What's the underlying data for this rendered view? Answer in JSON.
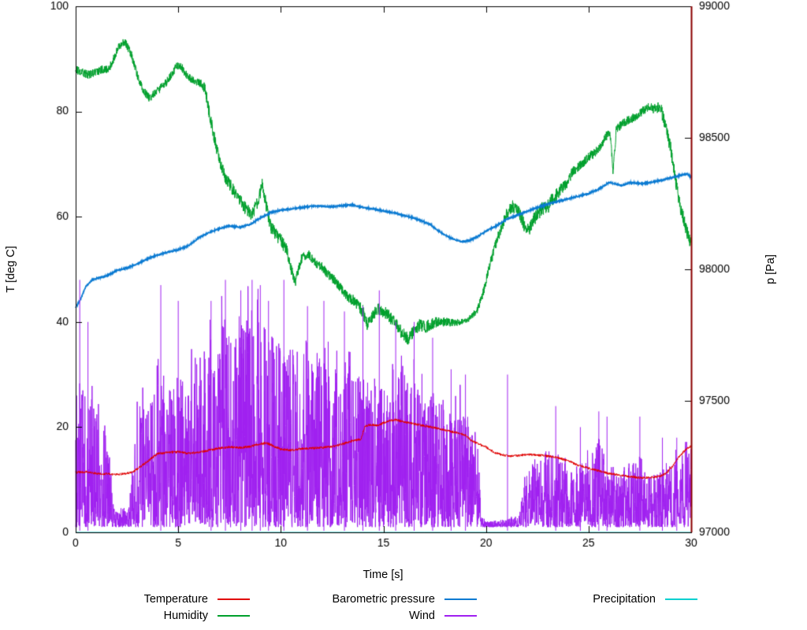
{
  "figure": {
    "background": "#ffffff"
  },
  "chart_data": {
    "type": "line",
    "title": "",
    "xlabel": "Time [s]",
    "ylabel_left": "T [deg C]",
    "ylabel_right": "p [Pa]",
    "xlim": [
      0,
      30
    ],
    "ylim_left": [
      0,
      100
    ],
    "ylim_right": [
      97000,
      99000
    ],
    "xticks": [
      0,
      5,
      10,
      15,
      20,
      25,
      30
    ],
    "yticks_left": [
      0,
      20,
      40,
      60,
      80,
      100
    ],
    "yticks_right": [
      97000,
      97500,
      98000,
      98500,
      99000
    ],
    "grid": false,
    "legend_position": "bottom",
    "border_color": "#000000",
    "right_border_color": "#8b0000",
    "draw_order": [
      4,
      1,
      2,
      3,
      0
    ],
    "series": [
      {
        "name": "Temperature",
        "color": "#e10000",
        "axis": "left",
        "style": "noisy-line",
        "width": 1,
        "noise": 0.22,
        "dt": 0.012,
        "keypoints": {
          "x": [
            0,
            0.5,
            1,
            1.5,
            2,
            2.5,
            2.8,
            3.2,
            3.6,
            4,
            4.5,
            5,
            5.5,
            6,
            6.5,
            7,
            7.5,
            8,
            8.5,
            9,
            9.3,
            9.7,
            10,
            10.5,
            11,
            11.5,
            12,
            12.5,
            13,
            13.5,
            13.9,
            14.1,
            14.4,
            14.7,
            15,
            15.3,
            15.6,
            16,
            16.4,
            16.8,
            17.2,
            17.6,
            18,
            18.5,
            19,
            19.3,
            19.7,
            20,
            20.4,
            20.8,
            21.2,
            21.6,
            22,
            22.5,
            23,
            23.5,
            24,
            24.4,
            24.8,
            25.2,
            25.6,
            26,
            26.5,
            27,
            27.5,
            28,
            28.5,
            28.8,
            29.1,
            29.4,
            29.7,
            30
          ],
          "y": [
            11.4,
            11.5,
            11.2,
            11.1,
            11.0,
            11.2,
            11.5,
            12.6,
            13.8,
            15.0,
            15.2,
            15.3,
            15.0,
            15.2,
            15.6,
            16.0,
            16.2,
            16.1,
            16.3,
            16.8,
            17.0,
            16.3,
            15.8,
            15.6,
            15.9,
            16.0,
            16.1,
            16.3,
            16.8,
            17.4,
            17.7,
            20.2,
            20.5,
            20.3,
            20.8,
            21.2,
            21.4,
            21.0,
            20.7,
            20.4,
            20.1,
            19.8,
            19.4,
            19.0,
            18.5,
            17.4,
            16.7,
            16.2,
            15.2,
            14.7,
            14.5,
            14.6,
            14.8,
            14.7,
            14.5,
            14.2,
            13.6,
            12.9,
            12.4,
            12.0,
            11.6,
            11.2,
            10.9,
            10.6,
            10.4,
            10.4,
            10.7,
            11.3,
            12.6,
            14.3,
            15.6,
            16.4
          ]
        }
      },
      {
        "name": "Humidity",
        "color": "#00a02c",
        "axis": "left",
        "style": "noisy-line",
        "width": 1,
        "noise": 0.9,
        "dt": 0.01,
        "noise_x": [
          0,
          6,
          6.5,
          10,
          11,
          13,
          14,
          17,
          19,
          20,
          23,
          24,
          26,
          28,
          28.5,
          30
        ],
        "noise_y": [
          0.8,
          0.8,
          1.2,
          1.3,
          0.9,
          0.9,
          1.2,
          1.2,
          0.5,
          0.9,
          1.5,
          0.9,
          0.9,
          0.8,
          1.3,
          1.3
        ],
        "keypoints": {
          "x": [
            0,
            0.3,
            0.6,
            1,
            1.3,
            1.6,
            1.9,
            2.1,
            2.4,
            2.7,
            3,
            3.3,
            3.6,
            4,
            4.3,
            4.6,
            4.9,
            5.1,
            5.4,
            5.7,
            6,
            6.3,
            6.5,
            6.7,
            7,
            7.3,
            7.6,
            8,
            8.3,
            8.6,
            8.9,
            9.1,
            9.3,
            9.5,
            9.8,
            10,
            10.3,
            10.5,
            10.7,
            11,
            11.3,
            11.6,
            12,
            12.3,
            12.6,
            13,
            13.3,
            13.6,
            14,
            14.2,
            14.5,
            14.8,
            15,
            15.3,
            15.6,
            15.9,
            16.2,
            16.5,
            16.8,
            17,
            17.3,
            17.6,
            18,
            18.5,
            19,
            19.3,
            19.6,
            19.9,
            20.2,
            20.5,
            20.8,
            21,
            21.3,
            21.6,
            21.9,
            22.1,
            22.4,
            22.7,
            23,
            23.3,
            23.6,
            24,
            24.2,
            24.5,
            24.8,
            25,
            25.3,
            25.6,
            25.9,
            26.05,
            26.2,
            26.35,
            26.6,
            27,
            27.3,
            27.6,
            28,
            28.2,
            28.5,
            28.7,
            29,
            29.2,
            29.4,
            29.6,
            29.8,
            30
          ],
          "y": [
            88,
            87.5,
            87,
            87.5,
            88,
            88,
            90.5,
            92.5,
            93.3,
            91,
            87,
            84,
            82.5,
            84,
            85,
            86.5,
            88.5,
            88.8,
            87,
            86,
            85.5,
            84.5,
            80,
            76,
            71,
            67.5,
            65.5,
            63,
            61.5,
            60.5,
            63,
            66.5,
            62,
            58,
            56.5,
            55.5,
            53.5,
            50,
            47.5,
            52,
            53,
            51.5,
            50.5,
            49,
            48,
            46,
            44.5,
            44,
            42,
            39.5,
            41.5,
            42.5,
            42,
            41,
            39.5,
            38,
            36.8,
            38.5,
            39.5,
            39,
            39.5,
            40,
            40,
            39.8,
            40.2,
            41,
            42.5,
            46,
            51,
            55,
            58.5,
            60.5,
            62,
            61,
            58,
            57.5,
            60,
            61.5,
            62,
            63.5,
            65,
            66.5,
            68.5,
            69.5,
            70.5,
            71.5,
            72,
            73.5,
            75.5,
            75.8,
            68.5,
            76.5,
            77.5,
            78.5,
            79,
            80,
            81,
            80.5,
            80.8,
            78,
            73,
            68,
            63,
            60,
            57,
            55
          ]
        }
      },
      {
        "name": "Barometric pressure",
        "color": "#0a7ad2",
        "axis": "right",
        "style": "noisy-line",
        "width": 1.5,
        "noise": 2.5,
        "dt": 0.01,
        "keypoints": {
          "x": [
            0,
            0.2,
            0.5,
            0.8,
            1,
            1.5,
            2,
            2.5,
            3,
            3.5,
            4,
            4.5,
            5,
            5.5,
            6,
            6.5,
            7,
            7.5,
            8,
            8.5,
            9,
            9.5,
            10,
            10.5,
            11,
            11.5,
            12,
            12.5,
            13,
            13.5,
            14,
            14.5,
            15,
            15.5,
            16,
            16.5,
            17,
            17.3,
            17.6,
            18,
            18.4,
            18.8,
            19.2,
            19.6,
            20,
            20.5,
            21,
            21.5,
            22,
            22.5,
            23,
            23.5,
            24,
            24.5,
            25,
            25.5,
            26,
            26.3,
            26.6,
            27,
            27.3,
            27.6,
            28,
            28.3,
            28.6,
            29,
            29.3,
            29.6,
            29.8,
            30
          ],
          "y": [
            97855,
            97880,
            97935,
            97960,
            97965,
            97975,
            97995,
            98005,
            98020,
            98040,
            98055,
            98065,
            98075,
            98090,
            98120,
            98140,
            98155,
            98165,
            98160,
            98170,
            98195,
            98215,
            98225,
            98230,
            98235,
            98240,
            98240,
            98238,
            98242,
            98245,
            98235,
            98230,
            98222,
            98215,
            98205,
            98195,
            98180,
            98170,
            98150,
            98130,
            98115,
            98105,
            98110,
            98125,
            98145,
            98165,
            98190,
            98205,
            98220,
            98235,
            98248,
            98258,
            98268,
            98278,
            98288,
            98305,
            98330,
            98325,
            98318,
            98330,
            98328,
            98326,
            98330,
            98335,
            98340,
            98348,
            98353,
            98360,
            98362,
            98350
          ]
        }
      },
      {
        "name": "Wind",
        "color": "#a020f0",
        "axis": "left",
        "style": "spikes",
        "width": 1,
        "floor": 1.0,
        "envelope": {
          "x": [
            0,
            0.8,
            1.5,
            1.9,
            2.6,
            3,
            3.5,
            4,
            5,
            5.5,
            6,
            7,
            8,
            9,
            9.5,
            10,
            11,
            12,
            13,
            14,
            15,
            16,
            17,
            18,
            19,
            19.6,
            19.8,
            20,
            21,
            21.6,
            21.9,
            22.3,
            23,
            23.5,
            24,
            24.5,
            25,
            25.5,
            26,
            26.5,
            27,
            27.5,
            28,
            28.5,
            29,
            29.5,
            30
          ],
          "y": [
            28,
            26,
            20,
            4,
            5,
            22,
            26,
            30,
            30,
            33,
            34,
            40,
            42,
            43,
            38,
            36,
            34,
            33,
            30,
            30,
            27,
            30,
            28,
            26,
            24,
            18,
            3,
            2,
            2.5,
            3,
            10,
            14,
            16,
            15,
            12,
            13,
            14,
            18,
            12,
            11,
            14,
            15,
            11,
            12,
            13,
            15,
            16
          ]
        },
        "spikes": [
          [
            0.2,
            48
          ],
          [
            0.6,
            40
          ],
          [
            4.15,
            47
          ],
          [
            5.0,
            44
          ],
          [
            6.6,
            44
          ],
          [
            7.3,
            48
          ],
          [
            8.05,
            46
          ],
          [
            8.6,
            48
          ],
          [
            9.0,
            47
          ],
          [
            9.4,
            44
          ],
          [
            10.15,
            48
          ],
          [
            11.3,
            43
          ],
          [
            12.1,
            44
          ],
          [
            13.1,
            42
          ],
          [
            14.0,
            43
          ],
          [
            14.8,
            46
          ],
          [
            15.6,
            40
          ],
          [
            16.5,
            40
          ],
          [
            17.4,
            37
          ],
          [
            18.3,
            31
          ],
          [
            19.0,
            30
          ],
          [
            21.05,
            30
          ],
          [
            23.4,
            24
          ],
          [
            24.6,
            20
          ],
          [
            25.5,
            23
          ],
          [
            25.9,
            22
          ],
          [
            27.5,
            22
          ],
          [
            28.6,
            18
          ],
          [
            29.3,
            18
          ]
        ]
      },
      {
        "name": "Precipitation",
        "color": "#00d0d0",
        "axis": "left",
        "style": "noisy-line",
        "width": 1,
        "noise": 0,
        "dt": 0.5,
        "keypoints": {
          "x": [
            0,
            30
          ],
          "y": [
            0,
            0
          ]
        }
      }
    ]
  }
}
